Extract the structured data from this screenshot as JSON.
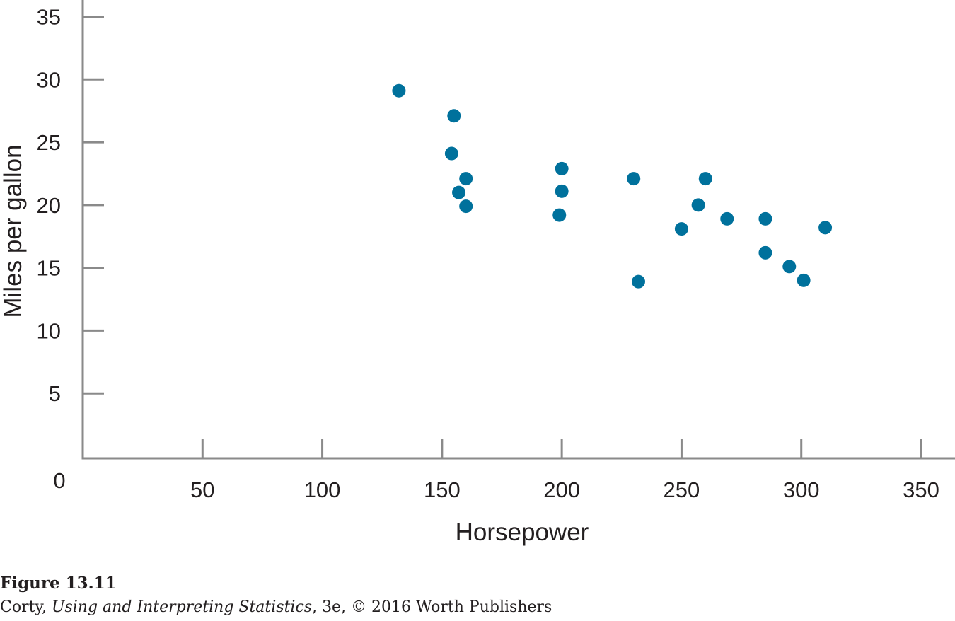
{
  "caption": {
    "figure_label": "Figure 13.11",
    "credit_author": "Corty, ",
    "credit_book": "Using and Interpreting Statistics",
    "credit_rest": ", 3e, © 2016 Worth Publishers"
  },
  "chart_data": {
    "type": "scatter",
    "title": "",
    "xlabel": "Horsepower",
    "ylabel": "Miles per gallon",
    "xlim": [
      0,
      350
    ],
    "ylim": [
      0,
      35
    ],
    "x_ticks": [
      50,
      100,
      150,
      200,
      250,
      300,
      350
    ],
    "y_ticks": [
      5,
      10,
      15,
      20,
      25,
      30,
      35
    ],
    "origin_label": "0",
    "grid": false,
    "point_color": "#00719c",
    "axis_color": "#8a8a8a",
    "points": [
      {
        "x": 132,
        "y": 29.1
      },
      {
        "x": 155,
        "y": 27.1
      },
      {
        "x": 154,
        "y": 24.1
      },
      {
        "x": 160,
        "y": 22.1
      },
      {
        "x": 157,
        "y": 21.0
      },
      {
        "x": 160,
        "y": 19.9
      },
      {
        "x": 200,
        "y": 22.9
      },
      {
        "x": 200,
        "y": 21.1
      },
      {
        "x": 199,
        "y": 19.2
      },
      {
        "x": 230,
        "y": 22.1
      },
      {
        "x": 232,
        "y": 13.9
      },
      {
        "x": 250,
        "y": 18.1
      },
      {
        "x": 257,
        "y": 20.0
      },
      {
        "x": 260,
        "y": 22.1
      },
      {
        "x": 269,
        "y": 18.9
      },
      {
        "x": 285,
        "y": 18.9
      },
      {
        "x": 285,
        "y": 16.2
      },
      {
        "x": 295,
        "y": 15.1
      },
      {
        "x": 301,
        "y": 14.0
      },
      {
        "x": 310,
        "y": 18.2
      }
    ]
  }
}
